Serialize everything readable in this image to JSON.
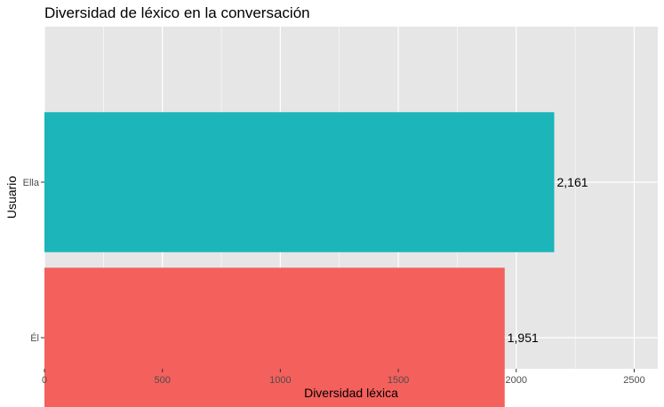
{
  "chart_data": {
    "type": "bar",
    "orientation": "horizontal",
    "title": "Diversidad de léxico en la conversación",
    "xlabel": "Diversidad léxica",
    "ylabel": "Usuario",
    "categories": [
      "Ella",
      "Él"
    ],
    "values": [
      2161,
      1951
    ],
    "data_labels": [
      "2,161",
      "1,951"
    ],
    "colors": [
      "#1bb5ba",
      "#f4605c"
    ],
    "xlim": [
      0,
      2600
    ],
    "xticks": [
      0,
      500,
      1000,
      1500,
      2000,
      2500
    ],
    "xtick_labels": [
      "0",
      "500",
      "1000",
      "1500",
      "2000",
      "2500"
    ],
    "grid": true,
    "legend": "none",
    "panel_background": "#e6e6e6",
    "grid_color": "#ffffff"
  }
}
